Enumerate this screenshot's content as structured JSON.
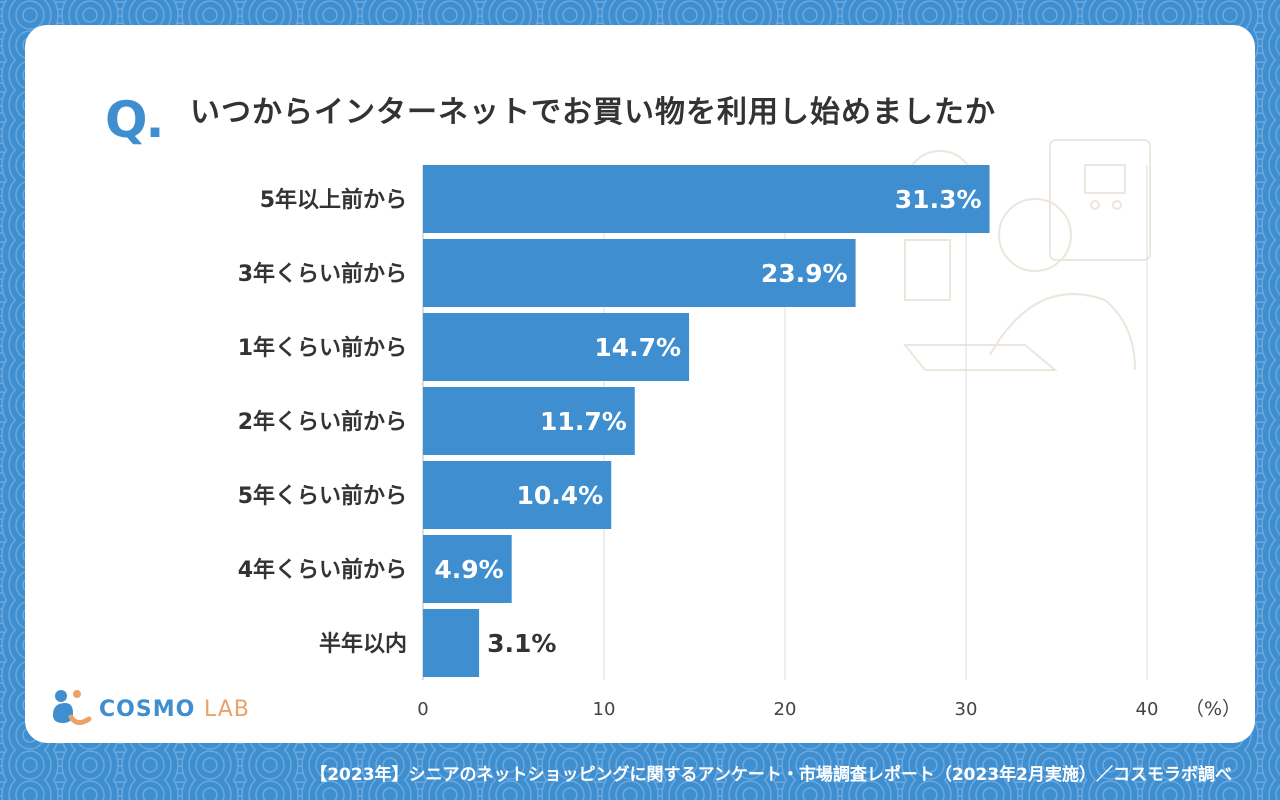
{
  "question": {
    "mark": "Q.",
    "text": "いつからインターネットでお買い物を利用し始めましたか"
  },
  "brand": {
    "name_part1": "COSMO ",
    "name_part2": "LAB"
  },
  "source": "【2023年】シニアのネットショッピングに関するアンケート・市場調査レポート（2023年2月実施）／コスモラボ調べ",
  "colors": {
    "bar": "#3f8ed0",
    "background": "#3f8ed0",
    "card": "#ffffff",
    "text": "#333333",
    "grid": "#dddddd",
    "accent": "#e8a26a"
  },
  "chart_data": {
    "type": "bar",
    "orientation": "horizontal",
    "categories": [
      "5年以上前から",
      "3年くらい前から",
      "1年くらい前から",
      "2年くらい前から",
      "5年くらい前から",
      "4年くらい前から",
      "半年以内"
    ],
    "values": [
      31.3,
      23.9,
      14.7,
      11.7,
      10.4,
      4.9,
      3.1
    ],
    "value_labels": [
      "31.3%",
      "23.9%",
      "14.7%",
      "11.7%",
      "10.4%",
      "4.9%",
      "3.1%"
    ],
    "xlim": [
      0,
      40
    ],
    "xticks": [
      0,
      10,
      20,
      30,
      40
    ],
    "xtick_labels": [
      "0",
      "10",
      "20",
      "30",
      "40"
    ],
    "unit_label": "（%）",
    "grid": true
  }
}
